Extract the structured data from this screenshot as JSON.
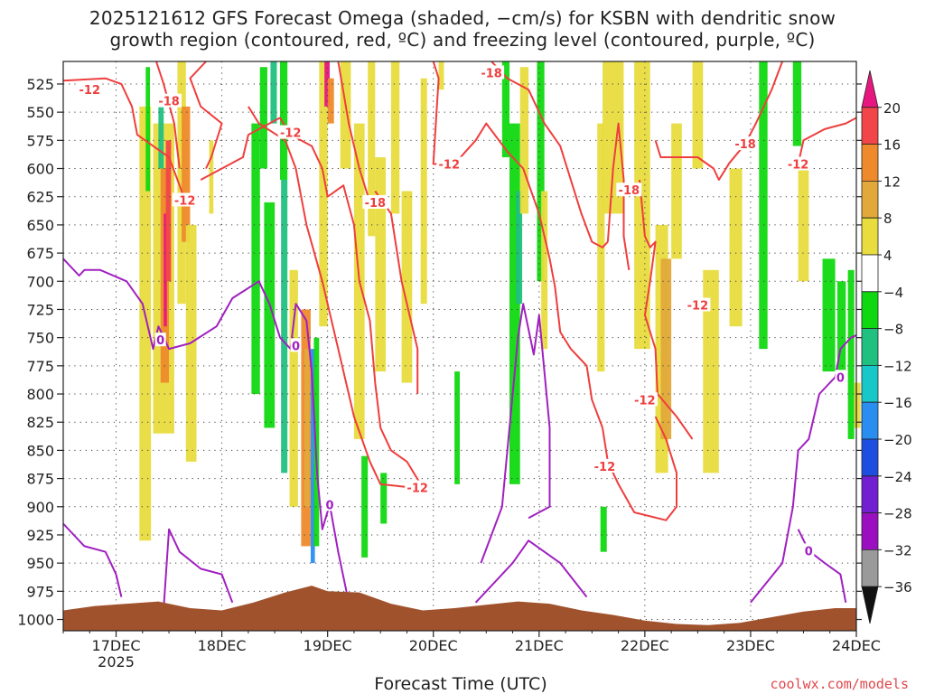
{
  "chart_data": {
    "type": "heatmap",
    "title_line1": "2025121612 GFS Forecast Omega (shaded, −cm/s) for KSBN with dendritic snow",
    "title_line2": "growth region (contoured, red, ºC) and freezing level (contoured, purple, ºC)",
    "xlabel": "Forecast Time (UTC)",
    "y_ticks": [
      "525",
      "550",
      "575",
      "600",
      "625",
      "650",
      "675",
      "700",
      "725",
      "750",
      "775",
      "800",
      "825",
      "850",
      "875",
      "900",
      "925",
      "950",
      "975",
      "1000"
    ],
    "y_values": [
      525,
      550,
      575,
      600,
      625,
      650,
      675,
      700,
      725,
      750,
      775,
      800,
      825,
      850,
      875,
      900,
      925,
      950,
      975,
      1000
    ],
    "ylim": [
      505,
      1010
    ],
    "x_ticks": [
      "17DEC",
      "18DEC",
      "19DEC",
      "20DEC",
      "21DEC",
      "22DEC",
      "23DEC",
      "24DEC"
    ],
    "x_values": [
      0.5,
      1.5,
      2.5,
      3.5,
      4.5,
      5.5,
      6.5,
      7.5
    ],
    "x_sub": "2025",
    "xlim": [
      0,
      7.5
    ],
    "colorbar": {
      "ticks": [
        "20",
        "16",
        "12",
        "8",
        "4",
        "−4",
        "−8",
        "−12",
        "−16",
        "−20",
        "−24",
        "−28",
        "−32",
        "−36"
      ],
      "colors": [
        "#e8177f",
        "#f2454a",
        "#ee8a2c",
        "#e2a93a",
        "#e8dc3e",
        "#ffffff",
        "#10d810",
        "#20c080",
        "#18c8c8",
        "#2a8ef0",
        "#1e4ee0",
        "#7020d0",
        "#9a10c0",
        "#9a9a9a",
        "#111111"
      ]
    },
    "contour_labels": [
      {
        "text": "-12",
        "color": "#ef3e3e",
        "x": 0.25,
        "y": 530
      },
      {
        "text": "-18",
        "color": "#ef3e3e",
        "x": 1.0,
        "y": 540
      },
      {
        "text": "-12",
        "color": "#ef3e3e",
        "x": 1.15,
        "y": 628
      },
      {
        "text": "-12",
        "color": "#ef3e3e",
        "x": 2.15,
        "y": 568
      },
      {
        "text": "-18",
        "color": "#ef3e3e",
        "x": 2.95,
        "y": 630
      },
      {
        "text": "-12",
        "color": "#ef3e3e",
        "x": 3.65,
        "y": 596
      },
      {
        "text": "-18",
        "color": "#ef3e3e",
        "x": 4.05,
        "y": 515
      },
      {
        "text": "-18",
        "color": "#ef3e3e",
        "x": 5.35,
        "y": 619
      },
      {
        "text": "-12",
        "color": "#ef3e3e",
        "x": 6.0,
        "y": 721
      },
      {
        "text": "-18",
        "color": "#ef3e3e",
        "x": 6.45,
        "y": 578
      },
      {
        "text": "-12",
        "color": "#ef3e3e",
        "x": 6.95,
        "y": 596
      },
      {
        "text": "-12",
        "color": "#ef3e3e",
        "x": 5.5,
        "y": 805
      },
      {
        "text": "-12",
        "color": "#ef3e3e",
        "x": 3.35,
        "y": 883
      },
      {
        "text": "-12",
        "color": "#ef3e3e",
        "x": 5.12,
        "y": 864
      },
      {
        "text": "0",
        "color": "#a020c0",
        "x": 0.92,
        "y": 752
      },
      {
        "text": "0",
        "color": "#a020c0",
        "x": 2.2,
        "y": 757
      },
      {
        "text": "0",
        "color": "#a020c0",
        "x": 2.52,
        "y": 898
      },
      {
        "text": "0",
        "color": "#a020c0",
        "x": 7.05,
        "y": 939
      },
      {
        "text": "0",
        "color": "#a020c0",
        "x": 7.35,
        "y": 785
      }
    ],
    "credit": "coolwx.com/models"
  }
}
